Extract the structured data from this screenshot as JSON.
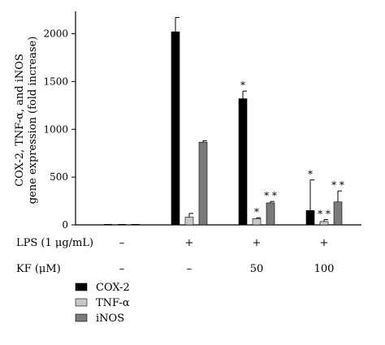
{
  "chart_data": {
    "type": "bar",
    "ylabel_lines": [
      "COX-2, TNF-α, and iNOS",
      "gene expression (fold increase)"
    ],
    "ylim": [
      0,
      2200
    ],
    "yticks": [
      "0",
      "500",
      "1000",
      "1500",
      "2000"
    ],
    "groups": 4,
    "series": [
      {
        "name": "COX-2",
        "color": "#000000",
        "values": [
          0,
          2020,
          1320,
          150
        ],
        "errors": [
          0,
          150,
          80,
          320
        ],
        "marks": [
          "",
          "",
          "*",
          "*"
        ]
      },
      {
        "name": "TNF-α",
        "color": "#c8c8c8",
        "values": [
          0,
          80,
          65,
          35
        ],
        "errors": [
          0,
          40,
          10,
          20
        ],
        "marks": [
          "",
          "",
          "*",
          "**"
        ]
      },
      {
        "name": "iNOS",
        "color": "#7a7a7a",
        "values": [
          0,
          865,
          230,
          240
        ],
        "errors": [
          0,
          15,
          15,
          115
        ],
        "marks": [
          "",
          "",
          "**",
          "**"
        ]
      }
    ],
    "treatments": [
      {
        "label": "LPS (1 μg/mL)",
        "values": [
          "–",
          "+",
          "+",
          "+"
        ]
      },
      {
        "label": "KF (μM)",
        "values": [
          "–",
          "–",
          "50",
          "100"
        ]
      }
    ]
  }
}
